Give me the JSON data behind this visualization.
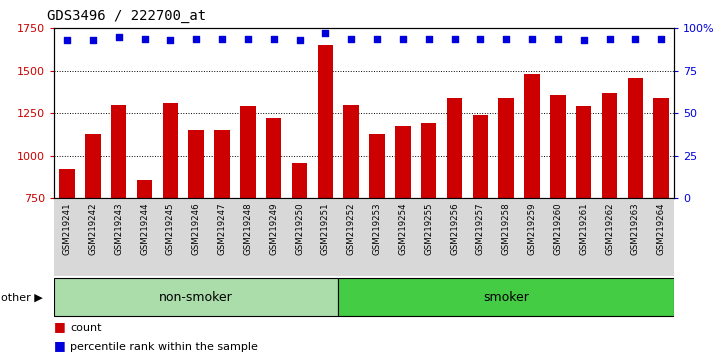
{
  "title": "GDS3496 / 222700_at",
  "samples": [
    "GSM219241",
    "GSM219242",
    "GSM219243",
    "GSM219244",
    "GSM219245",
    "GSM219246",
    "GSM219247",
    "GSM219248",
    "GSM219249",
    "GSM219250",
    "GSM219251",
    "GSM219252",
    "GSM219253",
    "GSM219254",
    "GSM219255",
    "GSM219256",
    "GSM219257",
    "GSM219258",
    "GSM219259",
    "GSM219260",
    "GSM219261",
    "GSM219262",
    "GSM219263",
    "GSM219264"
  ],
  "counts": [
    920,
    1130,
    1300,
    860,
    1310,
    1150,
    1150,
    1290,
    1220,
    960,
    1650,
    1300,
    1130,
    1175,
    1195,
    1340,
    1240,
    1340,
    1480,
    1360,
    1290,
    1370,
    1460,
    1340
  ],
  "percentiles": [
    93,
    93,
    95,
    94,
    93,
    94,
    94,
    94,
    94,
    93,
    97,
    94,
    94,
    94,
    94,
    94,
    94,
    94,
    94,
    94,
    93,
    94,
    94,
    94
  ],
  "non_smoker_count": 11,
  "smoker_count": 13,
  "group_labels": [
    "non-smoker",
    "smoker"
  ],
  "group_colors": [
    "#aaddaa",
    "#44cc44"
  ],
  "ylim_left": [
    750,
    1750
  ],
  "ylim_right": [
    0,
    100
  ],
  "yticks_left": [
    750,
    1000,
    1250,
    1500,
    1750
  ],
  "yticks_right": [
    0,
    25,
    50,
    75,
    100
  ],
  "bar_color": "#CC0000",
  "dot_color": "#0000DD",
  "tick_label_color": "#CC0000",
  "right_tick_color": "#0000DD",
  "bg_color": "#d8d8d8",
  "title_fontsize": 10,
  "bar_width": 0.6
}
